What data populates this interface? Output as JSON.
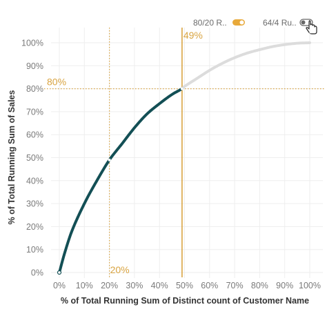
{
  "toggles": [
    {
      "label": "80/20 R..",
      "state": "on"
    },
    {
      "label": "64/4 Ru..",
      "state": "off"
    }
  ],
  "colors": {
    "curve_active": "#134f55",
    "curve_inactive": "#dcdcdc",
    "reference": "#d9a441",
    "grid": "#eeeeee",
    "toggle_on": "#e8a93a",
    "toggle_off": "#666666"
  },
  "chart_data": {
    "type": "line",
    "xlabel": "% of Total Running Sum of Distinct count of Customer Name",
    "ylabel": "% of Total Running Sum of Sales",
    "xlim": [
      0,
      100
    ],
    "ylim": [
      0,
      100
    ],
    "x_ticks": [
      "0%",
      "10%",
      "20%",
      "30%",
      "40%",
      "50%",
      "60%",
      "70%",
      "80%",
      "90%",
      "100%"
    ],
    "y_ticks": [
      "0%",
      "10%",
      "20%",
      "30%",
      "40%",
      "50%",
      "60%",
      "70%",
      "80%",
      "90%",
      "100%"
    ],
    "grid": true,
    "series": [
      {
        "x": [
          0,
          2,
          5,
          10,
          15,
          20,
          25,
          30,
          35,
          40,
          45,
          49,
          50,
          55,
          60,
          65,
          70,
          75,
          80,
          85,
          90,
          95,
          100
        ],
        "y": [
          0,
          8,
          18,
          30,
          40,
          49,
          56,
          63,
          69,
          73.5,
          77.5,
          80,
          81,
          84.5,
          88,
          91,
          93.5,
          95.5,
          97,
          98.3,
          99.2,
          99.8,
          100
        ],
        "highlight_until_x": 49
      }
    ],
    "reference_lines": [
      {
        "axis": "y",
        "value": 80,
        "label": "80%"
      },
      {
        "axis": "x",
        "value": 20,
        "label": "20%"
      },
      {
        "axis": "x",
        "value": 49,
        "label": "49%"
      }
    ]
  }
}
